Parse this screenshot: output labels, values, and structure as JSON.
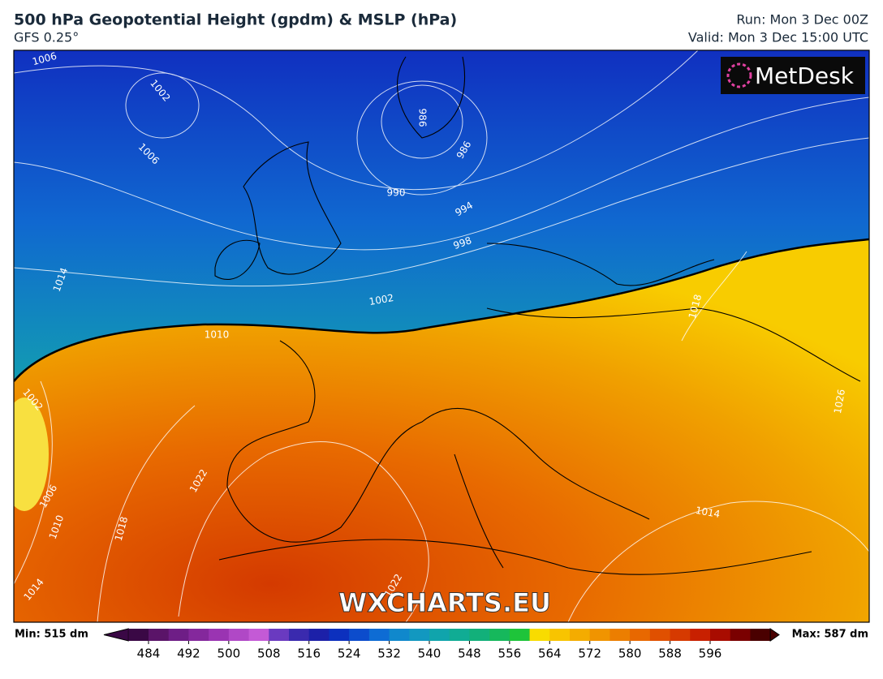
{
  "header": {
    "title": "500 hPa Geopotential Height (gpdm) & MSLP (hPa)",
    "subtitle": "GFS 0.25°",
    "run": "Run: Mon 3 Dec 00Z",
    "valid": "Valid: Mon 3 Dec 15:00 UTC"
  },
  "logo": "MetDesk",
  "watermark": "WXCHARTS.EU",
  "isobar_labels": [
    "1006",
    "1002",
    "1006",
    "1014",
    "986",
    "986",
    "990",
    "994",
    "998",
    "1002",
    "1010",
    "1018",
    "1026",
    "1002",
    "1022",
    "1018",
    "1010",
    "1006",
    "1014",
    "1014",
    "1022"
  ],
  "colorbar": {
    "min_label": "Min: 515 dm",
    "max_label": "Max: 587 dm",
    "ticks": [
      484,
      492,
      500,
      508,
      516,
      524,
      532,
      540,
      548,
      556,
      564,
      572,
      580,
      588,
      596
    ],
    "colors": [
      "#3a0845",
      "#5a1468",
      "#6e1e86",
      "#84289c",
      "#9a34b2",
      "#b048c6",
      "#c45ad6",
      "#6a3ac0",
      "#3a2aae",
      "#1c20a8",
      "#0c30be",
      "#0c4ccc",
      "#0e6cd4",
      "#1088cc",
      "#1298c0",
      "#10a4ac",
      "#10ac94",
      "#12b07a",
      "#16b85c",
      "#1ec43a",
      "#f8dc00",
      "#f8c400",
      "#f4ac00",
      "#f09400",
      "#ec7e00",
      "#e86800",
      "#e05000",
      "#d63a00",
      "#c82000",
      "#a80c00",
      "#7a0000",
      "#4a0000"
    ]
  }
}
